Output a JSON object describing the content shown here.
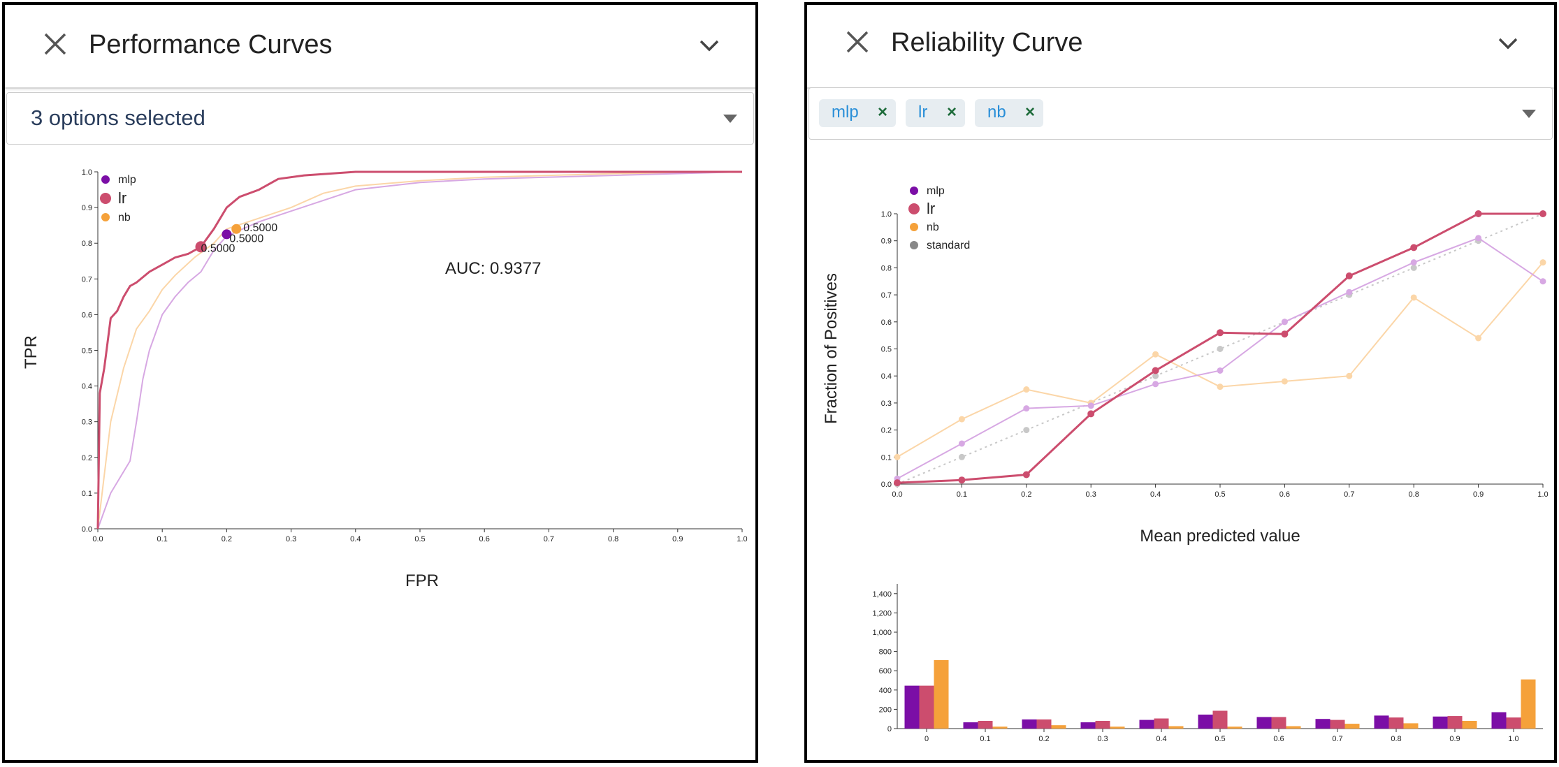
{
  "left_panel": {
    "title": "Performance Curves",
    "select_text": "3 options selected",
    "auc_label": "AUC: 0.9377",
    "legend": [
      {
        "name": "mlp",
        "color": "#7b0ea6"
      },
      {
        "name": "lr",
        "color": "#cc4d6e"
      },
      {
        "name": "nb",
        "color": "#f5a13a"
      }
    ],
    "threshold_labels": [
      "0.5000",
      "0.5000",
      "0.5000"
    ]
  },
  "right_panel": {
    "title": "Reliability Curve",
    "chips": [
      {
        "label": "mlp",
        "remove": "×"
      },
      {
        "label": "lr",
        "remove": "×"
      },
      {
        "label": "nb",
        "remove": "×"
      }
    ],
    "legend": [
      {
        "name": "mlp",
        "color": "#7b0ea6"
      },
      {
        "name": "lr",
        "color": "#cc4d6e"
      },
      {
        "name": "nb",
        "color": "#f5a13a"
      },
      {
        "name": "standard",
        "color": "#888888"
      }
    ]
  },
  "chart_data": [
    {
      "type": "line",
      "xlabel": "FPR",
      "ylabel": "TPR",
      "xlim": [
        0,
        1
      ],
      "ylim": [
        0,
        1
      ],
      "xticks": [
        "0.0",
        "0.1",
        "0.2",
        "0.3",
        "0.4",
        "0.5",
        "0.6",
        "0.7",
        "0.8",
        "0.9",
        "1.0"
      ],
      "yticks": [
        "0.0",
        "0.1",
        "0.2",
        "0.3",
        "0.4",
        "0.5",
        "0.6",
        "0.7",
        "0.8",
        "0.9",
        "1.0"
      ],
      "series": [
        {
          "name": "mlp",
          "color": "#d7a8e3",
          "x": [
            0,
            0.02,
            0.05,
            0.06,
            0.07,
            0.08,
            0.1,
            0.12,
            0.14,
            0.16,
            0.18,
            0.2,
            0.25,
            0.3,
            0.35,
            0.4,
            0.5,
            0.6,
            0.8,
            1.0
          ],
          "y": [
            0,
            0.1,
            0.19,
            0.3,
            0.42,
            0.5,
            0.6,
            0.65,
            0.69,
            0.72,
            0.78,
            0.82,
            0.86,
            0.89,
            0.92,
            0.95,
            0.97,
            0.98,
            0.99,
            1.0
          ],
          "point": [
            0.2,
            0.825
          ]
        },
        {
          "name": "lr",
          "color": "#cc4d6e",
          "x": [
            0,
            0.003,
            0.01,
            0.015,
            0.02,
            0.03,
            0.04,
            0.05,
            0.06,
            0.08,
            0.1,
            0.12,
            0.14,
            0.16,
            0.18,
            0.2,
            0.22,
            0.25,
            0.28,
            0.32,
            0.4,
            0.5,
            0.7,
            1.0
          ],
          "y": [
            0,
            0.38,
            0.45,
            0.52,
            0.59,
            0.61,
            0.65,
            0.68,
            0.69,
            0.72,
            0.74,
            0.76,
            0.77,
            0.79,
            0.84,
            0.9,
            0.93,
            0.95,
            0.98,
            0.99,
            1.0,
            1.0,
            1.0,
            1.0
          ],
          "point": [
            0.16,
            0.79
          ]
        },
        {
          "name": "nb",
          "color": "#fbd6a8",
          "x": [
            0,
            0.02,
            0.04,
            0.06,
            0.08,
            0.1,
            0.12,
            0.15,
            0.18,
            0.2,
            0.25,
            0.3,
            0.35,
            0.4,
            0.5,
            0.6,
            0.8,
            1.0
          ],
          "y": [
            0,
            0.3,
            0.45,
            0.56,
            0.61,
            0.67,
            0.71,
            0.76,
            0.8,
            0.84,
            0.87,
            0.9,
            0.94,
            0.96,
            0.975,
            0.985,
            0.995,
            1.0
          ],
          "point": [
            0.215,
            0.84
          ]
        }
      ]
    },
    {
      "type": "line",
      "xlabel": "Mean predicted value",
      "ylabel": "Fraction of Positives",
      "xlim": [
        0,
        1
      ],
      "ylim": [
        0,
        1
      ],
      "xticks": [
        "0.0",
        "0.1",
        "0.2",
        "0.3",
        "0.4",
        "0.5",
        "0.6",
        "0.7",
        "0.8",
        "0.9",
        "1.0"
      ],
      "yticks": [
        "0.0",
        "0.1",
        "0.2",
        "0.3",
        "0.4",
        "0.5",
        "0.6",
        "0.7",
        "0.8",
        "0.9",
        "1.0"
      ],
      "x": [
        0,
        0.1,
        0.2,
        0.3,
        0.4,
        0.5,
        0.6,
        0.7,
        0.8,
        0.9,
        1.0
      ],
      "series": [
        {
          "name": "mlp",
          "color": "#d7a8e3",
          "values": [
            0.02,
            0.15,
            0.28,
            0.29,
            0.37,
            0.42,
            0.6,
            0.71,
            0.82,
            0.91,
            0.75
          ]
        },
        {
          "name": "lr",
          "color": "#cc4d6e",
          "values": [
            0.005,
            0.015,
            0.035,
            0.26,
            0.42,
            0.56,
            0.555,
            0.77,
            0.875,
            1.0,
            1.0
          ]
        },
        {
          "name": "nb",
          "color": "#fbd6a8",
          "values": [
            0.1,
            0.24,
            0.35,
            0.3,
            0.48,
            0.36,
            0.38,
            0.4,
            0.69,
            0.54,
            0.82
          ]
        },
        {
          "name": "standard",
          "color": "#c8c8c8",
          "values": [
            0,
            0.1,
            0.2,
            0.3,
            0.4,
            0.5,
            0.6,
            0.7,
            0.8,
            0.9,
            1.0
          ]
        }
      ]
    },
    {
      "type": "bar",
      "categories": [
        "0",
        "0.1",
        "0.2",
        "0.3",
        "0.4",
        "0.5",
        "0.6",
        "0.7",
        "0.8",
        "0.9",
        "1.0"
      ],
      "ylim": [
        0,
        1500
      ],
      "yticks": [
        "0",
        "200",
        "400",
        "600",
        "800",
        "1,000",
        "1,200",
        "1,400"
      ],
      "series": [
        {
          "name": "mlp",
          "color": "#7b0ea6",
          "values": [
            445,
            65,
            95,
            65,
            90,
            145,
            120,
            100,
            135,
            125,
            170
          ]
        },
        {
          "name": "lr",
          "color": "#cc4d6e",
          "values": [
            445,
            80,
            95,
            80,
            105,
            185,
            120,
            90,
            115,
            130,
            115
          ]
        },
        {
          "name": "nb",
          "color": "#f5a13a",
          "values": [
            710,
            20,
            35,
            20,
            25,
            20,
            25,
            50,
            55,
            80,
            510
          ]
        }
      ]
    }
  ]
}
